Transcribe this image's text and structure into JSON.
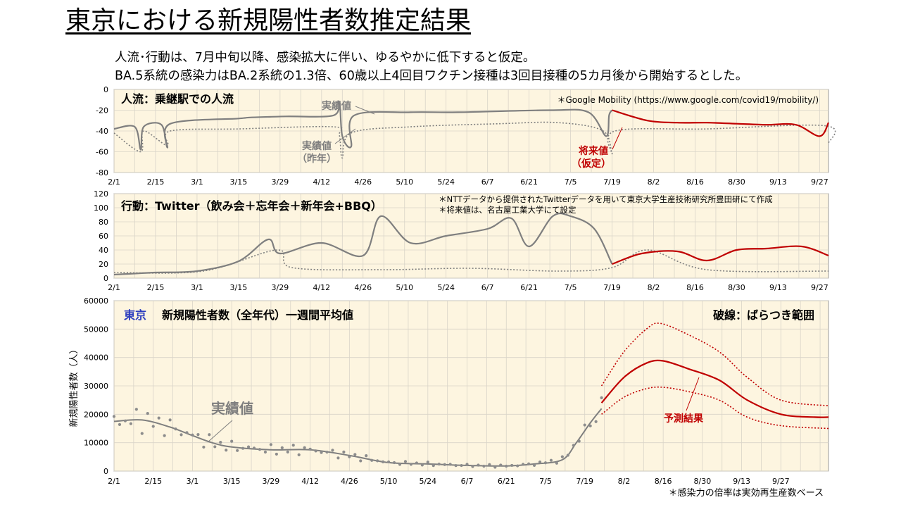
{
  "title": "東京における新規陽性者数推定結果",
  "subtitle_lines": [
    "人流･行動は、7月中旬以降、感染拡大に伴い、ゆるやかに低下すると仮定。",
    "BA.5系統の感染力はBA.2系統の1.3倍、60歳以上4回目ワクチン接種は3回目接種の5カ月後から開始するとした。"
  ],
  "footnote": "＊感染力の倍率は実効再生産数ベース",
  "colors": {
    "panel_bg": "#fdf5e0",
    "actual": "#7f7f7f",
    "forecast": "#c00000",
    "region_label": "#2e3fbf"
  },
  "chart_data": [
    {
      "type": "line",
      "title": "人流：乗継駅での人流",
      "note": "＊Google Mobility (https://www.google.com/covid19/mobility/)",
      "categories": [
        "2/1",
        "2/15",
        "3/1",
        "3/15",
        "3/29",
        "4/12",
        "4/26",
        "5/10",
        "5/24",
        "6/7",
        "6/21",
        "7/5",
        "7/19",
        "8/2",
        "8/16",
        "8/30",
        "9/13",
        "9/27"
      ],
      "ylim": [
        -80,
        0
      ],
      "yticks": [
        0,
        -20,
        -40,
        -60,
        -80
      ],
      "grid": true,
      "annotations": [
        "実績値",
        "実績値",
        "（昨年）",
        "将来値",
        "（仮定）"
      ],
      "series": [
        {
          "name": "実績値",
          "style": "solid-gray",
          "points": [
            [
              0,
              -38
            ],
            [
              7,
              -36
            ],
            [
              9,
              -58
            ],
            [
              10,
              -36
            ],
            [
              16,
              -34
            ],
            [
              18,
              -56
            ],
            [
              19,
              -33
            ],
            [
              42,
              -28
            ],
            [
              46,
              -27
            ],
            [
              58,
              -26
            ],
            [
              74,
              -25
            ],
            [
              76,
              -12
            ],
            [
              77,
              -45
            ],
            [
              80,
              -55
            ],
            [
              81,
              -25
            ],
            [
              100,
              -22
            ],
            [
              116,
              -22
            ],
            [
              147,
              -20
            ],
            [
              160,
              -22
            ],
            [
              166,
              -45
            ],
            [
              167,
              -25
            ],
            [
              168,
              -20
            ]
          ]
        },
        {
          "name": "実績値（昨年）",
          "style": "dotted-gray",
          "points": [
            [
              0,
              -42
            ],
            [
              9,
              -60
            ],
            [
              10,
              -40
            ],
            [
              18,
              -54
            ],
            [
              19,
              -40
            ],
            [
              42,
              -38
            ],
            [
              74,
              -36
            ],
            [
              76,
              -44
            ],
            [
              77,
              -66
            ],
            [
              80,
              -42
            ],
            [
              100,
              -36
            ],
            [
              130,
              -33
            ],
            [
              150,
              -32
            ],
            [
              165,
              -40
            ],
            [
              168,
              -62
            ],
            [
              169,
              -40
            ],
            [
              200,
              -38
            ],
            [
              240,
              -35
            ],
            [
              241,
              -52
            ]
          ]
        },
        {
          "name": "将来値（仮定）",
          "style": "solid-red",
          "points": [
            [
              168,
              -20
            ],
            [
              180,
              -30
            ],
            [
              190,
              -32
            ],
            [
              200,
              -32
            ],
            [
              210,
              -33
            ],
            [
              220,
              -34
            ],
            [
              230,
              -34
            ],
            [
              238,
              -45
            ],
            [
              241,
              -32
            ]
          ]
        }
      ]
    },
    {
      "type": "line",
      "title": "行動：Twitter（飲み会＋忘年会＋新年会+BBQ）",
      "note": "＊NTTデータから提供されたTwitterデータを用いて東京大学生産技術研究所豊田研にて作成",
      "note2": "＊将来値は、名古屋工業大学にて設定",
      "categories": [
        "2/1",
        "2/15",
        "3/1",
        "3/15",
        "3/29",
        "4/12",
        "4/26",
        "5/10",
        "5/24",
        "6/7",
        "6/21",
        "7/5",
        "7/19",
        "8/2",
        "8/16",
        "8/30",
        "9/13",
        "9/27"
      ],
      "ylim": [
        0,
        120
      ],
      "yticks": [
        0,
        20,
        40,
        60,
        80,
        100,
        120
      ],
      "grid": true,
      "series": [
        {
          "name": "実績値",
          "style": "solid-gray",
          "points": [
            [
              0,
              5
            ],
            [
              14,
              8
            ],
            [
              28,
              10
            ],
            [
              42,
              24
            ],
            [
              52,
              55
            ],
            [
              56,
              35
            ],
            [
              70,
              50
            ],
            [
              84,
              32
            ],
            [
              90,
              88
            ],
            [
              100,
              50
            ],
            [
              112,
              60
            ],
            [
              126,
              70
            ],
            [
              134,
              85
            ],
            [
              140,
              45
            ],
            [
              148,
              88
            ],
            [
              154,
              88
            ],
            [
              162,
              70
            ],
            [
              168,
              20
            ]
          ]
        },
        {
          "name": "実績値（昨年）",
          "style": "dotted-gray",
          "points": [
            [
              0,
              8
            ],
            [
              30,
              10
            ],
            [
              55,
              40
            ],
            [
              60,
              15
            ],
            [
              90,
              12
            ],
            [
              120,
              14
            ],
            [
              150,
              10
            ],
            [
              168,
              15
            ],
            [
              180,
              40
            ],
            [
              200,
              12
            ],
            [
              241,
              10
            ]
          ]
        },
        {
          "name": "将来値",
          "style": "solid-red",
          "points": [
            [
              168,
              20
            ],
            [
              178,
              35
            ],
            [
              190,
              38
            ],
            [
              200,
              25
            ],
            [
              210,
              40
            ],
            [
              220,
              42
            ],
            [
              232,
              45
            ],
            [
              241,
              32
            ]
          ]
        }
      ]
    },
    {
      "type": "line",
      "title": "新規陽性者数（全年代）一週間平均値",
      "region": "東京",
      "legend_note": "破線：ばらつき範囲",
      "ylabel": "新規陽性者数（人）",
      "categories": [
        "2/1",
        "2/15",
        "3/1",
        "3/15",
        "3/29",
        "4/12",
        "4/26",
        "5/10",
        "5/24",
        "6/7",
        "6/21",
        "7/5",
        "7/19",
        "8/2",
        "8/16",
        "8/30",
        "9/13",
        "9/27"
      ],
      "ylim": [
        0,
        60000
      ],
      "yticks": [
        0,
        10000,
        20000,
        30000,
        40000,
        50000,
        60000
      ],
      "grid": true,
      "annotations": [
        "実績値",
        "予測結果"
      ],
      "series": [
        {
          "name": "実績値",
          "style": "gray-smooth",
          "points": [
            [
              0,
              17500
            ],
            [
              10,
              18000
            ],
            [
              20,
              15500
            ],
            [
              28,
              12500
            ],
            [
              35,
              10000
            ],
            [
              42,
              8500
            ],
            [
              56,
              7500
            ],
            [
              70,
              7500
            ],
            [
              84,
              5500
            ],
            [
              98,
              3000
            ],
            [
              112,
              2500
            ],
            [
              126,
              2000
            ],
            [
              140,
              1800
            ],
            [
              150,
              2500
            ],
            [
              160,
              4000
            ],
            [
              165,
              10000
            ],
            [
              170,
              17000
            ],
            [
              174,
              22000
            ]
          ]
        },
        {
          "name": "予測結果",
          "style": "solid-red",
          "points": [
            [
              174,
              24000
            ],
            [
              182,
              33000
            ],
            [
              190,
              38000
            ],
            [
              196,
              38800
            ],
            [
              205,
              36000
            ],
            [
              216,
              32000
            ],
            [
              226,
              25000
            ],
            [
              238,
              20000
            ],
            [
              250,
              19000
            ],
            [
              255,
              19000
            ]
          ]
        },
        {
          "name": "ばらつき範囲（上限）",
          "style": "dotted-red",
          "points": [
            [
              174,
              30000
            ],
            [
              182,
              42000
            ],
            [
              190,
              50000
            ],
            [
              195,
              52000
            ],
            [
              205,
              48000
            ],
            [
              216,
              42000
            ],
            [
              226,
              33000
            ],
            [
              238,
              25000
            ],
            [
              255,
              23000
            ]
          ]
        },
        {
          "name": "ばらつき範囲（下限）",
          "style": "dotted-red",
          "points": [
            [
              174,
              20000
            ],
            [
              182,
              26000
            ],
            [
              190,
              29000
            ],
            [
              196,
              29500
            ],
            [
              205,
              28000
            ],
            [
              216,
              25000
            ],
            [
              226,
              19000
            ],
            [
              238,
              16000
            ],
            [
              255,
              15000
            ]
          ]
        }
      ]
    }
  ]
}
